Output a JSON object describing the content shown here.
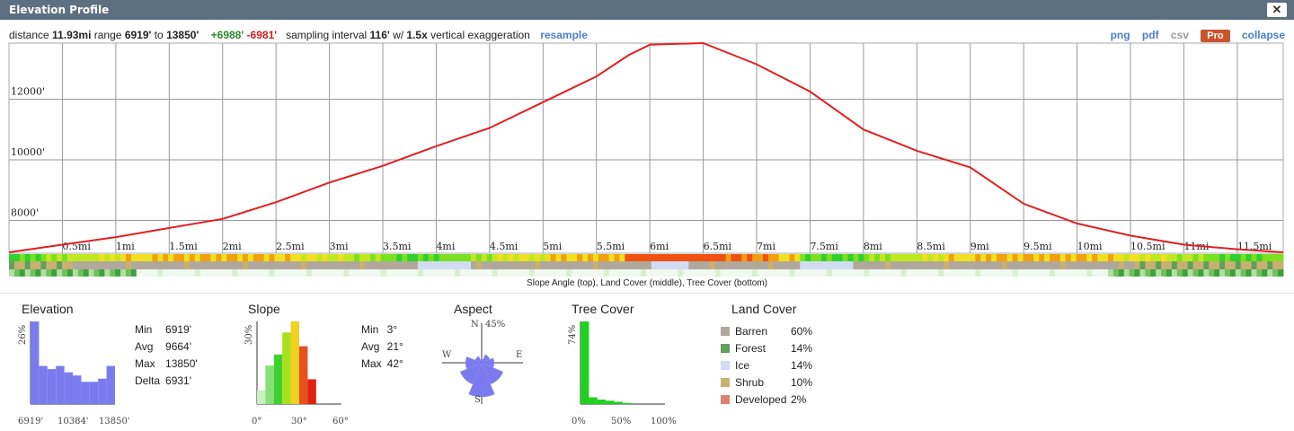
{
  "window": {
    "title": "Elevation Profile",
    "close": "✕"
  },
  "stats": {
    "distance_label": "distance",
    "distance": "11.93mi",
    "range_label": "range",
    "min": "6919'",
    "to_label": "to",
    "max": "13850'",
    "gain": "+6988'",
    "loss": "-6981'",
    "sampling_label": "sampling interval",
    "interval": "116'",
    "w_label": "w/",
    "exag": "1.5x",
    "exag_label": "vertical exaggeration",
    "resample": "resample"
  },
  "links": {
    "png": "png",
    "pdf": "pdf",
    "csv": "csv",
    "pro": "Pro",
    "collapse": "collapse"
  },
  "caption": "Slope Angle (top), Land Cover (middle), Tree Cover (bottom)",
  "chart_data": {
    "type": "line",
    "x_unit": "mi",
    "y_unit": "ft",
    "y_ticks": [
      "8000'",
      "10000'",
      "12000'"
    ],
    "x_ticks": [
      "0.5mi",
      "1mi",
      "1.5mi",
      "2mi",
      "2.5mi",
      "3mi",
      "3.5mi",
      "4mi",
      "4.5mi",
      "5mi",
      "5.5mi",
      "6mi",
      "6.5mi",
      "7mi",
      "7.5mi",
      "8mi",
      "8.5mi",
      "9mi",
      "9.5mi",
      "10mi",
      "10.5mi",
      "11mi",
      "11.5mi"
    ],
    "x": [
      0,
      0.5,
      1,
      1.5,
      2,
      2.5,
      3,
      3.5,
      4,
      4.5,
      5,
      5.5,
      5.8,
      6,
      6.5,
      7,
      7.5,
      8,
      8.5,
      9,
      9.5,
      10,
      10.5,
      11,
      11.5,
      11.93
    ],
    "y": [
      6950,
      7200,
      7450,
      7750,
      8050,
      8600,
      9250,
      9800,
      10450,
      11050,
      11900,
      12750,
      13450,
      13800,
      13850,
      13150,
      12250,
      11000,
      10300,
      9750,
      8550,
      7900,
      7500,
      7200,
      7050,
      6950
    ],
    "color": "#e02020",
    "ylim": [
      6919,
      13850
    ]
  },
  "elevation": {
    "title": "Elevation",
    "ymax": "26%",
    "xlabels": [
      "6919'",
      "10384'",
      "13850'"
    ],
    "stats": [
      [
        "Min",
        "6919'"
      ],
      [
        "Avg",
        "9664'"
      ],
      [
        "Max",
        "13850'"
      ],
      [
        "Delta",
        "6931'"
      ]
    ],
    "hist": [
      26,
      12,
      11,
      12,
      10,
      9,
      7,
      7,
      8,
      12
    ],
    "color": "#7b7bf0"
  },
  "slope": {
    "title": "Slope",
    "ymax": "30%",
    "xlabels": [
      "0°",
      "30°",
      "60°"
    ],
    "stats": [
      [
        "Min",
        "3°"
      ],
      [
        "Avg",
        "21°"
      ],
      [
        "Max",
        "42°"
      ]
    ],
    "hist": [
      5,
      14,
      18,
      26,
      30,
      21,
      9
    ],
    "colors": [
      "#c8f0c0",
      "#88e078",
      "#40d030",
      "#a8e020",
      "#f0d020",
      "#e85020",
      "#e02010"
    ]
  },
  "aspect": {
    "title": "Aspect",
    "n": "N",
    "e": "E",
    "s": "S",
    "w": "W",
    "pct": "45%",
    "color": "#7b7bf0"
  },
  "tree": {
    "title": "Tree Cover",
    "ymax": "74%",
    "xlabels": [
      "0%",
      "50%",
      "100%"
    ],
    "hist": [
      74,
      6,
      4,
      3,
      2,
      1,
      0,
      0,
      0,
      0
    ],
    "color": "#20d020"
  },
  "landcover": {
    "title": "Land Cover",
    "items": [
      {
        "name": "Barren",
        "pct": "60%",
        "color": "#b0a89c"
      },
      {
        "name": "Forest",
        "pct": "14%",
        "color": "#60a05a"
      },
      {
        "name": "Ice",
        "pct": "14%",
        "color": "#d0dcf4"
      },
      {
        "name": "Shrub",
        "pct": "10%",
        "color": "#c8b070"
      },
      {
        "name": "Developed",
        "pct": "2%",
        "color": "#e08070"
      }
    ]
  }
}
